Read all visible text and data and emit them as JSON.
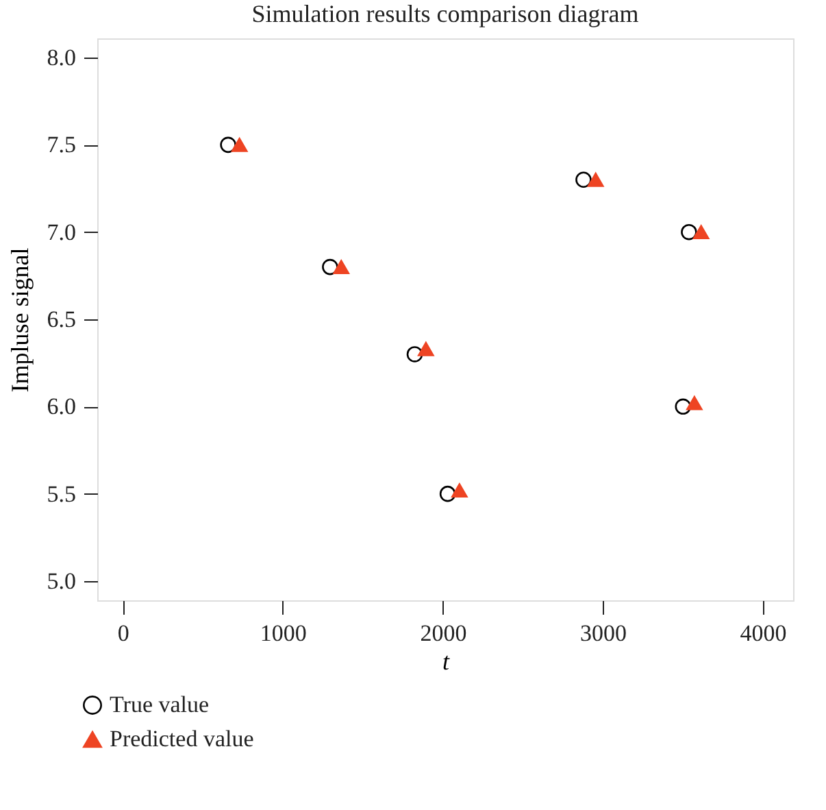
{
  "chart_data": {
    "type": "scatter",
    "title": "Simulation results comparison diagram",
    "xlabel": "t",
    "ylabel": "Impluse signal",
    "xlim": [
      -159,
      4190
    ],
    "xticks": [
      0,
      1000,
      2000,
      3000,
      4000
    ],
    "ylim": [
      4.89,
      8.11
    ],
    "yticks": [
      {
        "value": 5,
        "label": "5.0"
      },
      5.5,
      {
        "value": 6,
        "label": "6.0"
      },
      6.5,
      {
        "value": 7,
        "label": "7.0"
      },
      7.5,
      {
        "value": 8,
        "label": "8.0"
      }
    ],
    "grid": false,
    "legend": "bottom left",
    "series": [
      {
        "name": "True value",
        "color": "#000000",
        "marker": "circle",
        "x": [
          659,
          1296,
          1825,
          2031,
          2880,
          3539,
          3502
        ],
        "values": [
          7.5,
          6.8,
          6.3,
          5.5,
          7.3,
          7.0,
          6.0
        ]
      },
      {
        "name": "Predicted value",
        "color": "#ee4423",
        "marker": "triangle",
        "x": [
          730,
          1366,
          1895,
          2105,
          2956,
          3615,
          3573
        ],
        "values": [
          7.5,
          6.8,
          6.33,
          5.52,
          7.3,
          7.0,
          6.02
        ]
      }
    ]
  }
}
